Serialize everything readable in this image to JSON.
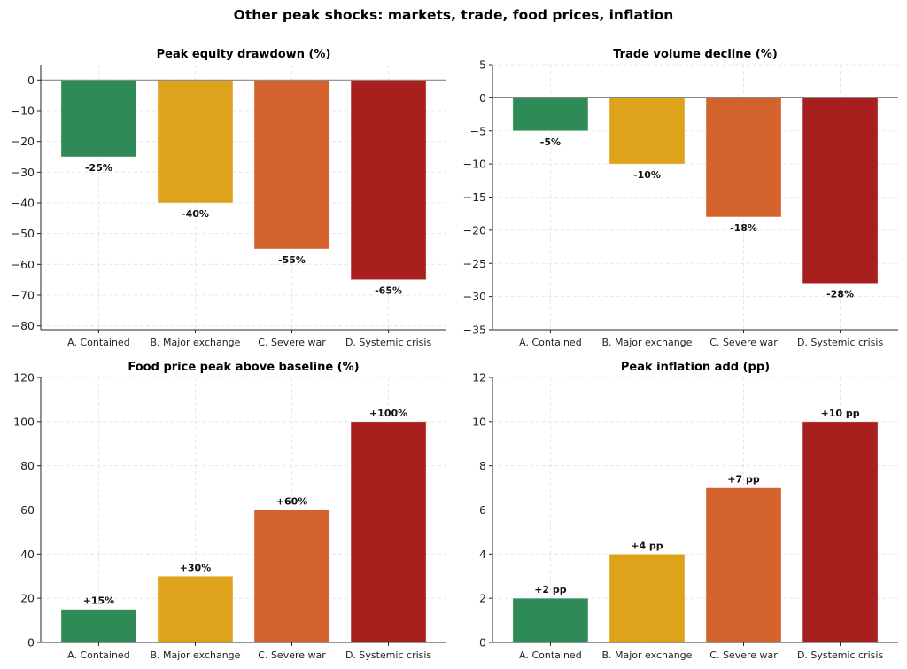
{
  "figure": {
    "title": "Other peak shocks: markets, trade, food prices, inflation"
  },
  "colors": {
    "scenario_a": "#2e8b57",
    "scenario_b": "#dfa31b",
    "scenario_c": "#d4622d",
    "scenario_d": "#a8201d"
  },
  "chart_data": [
    {
      "type": "bar",
      "title": "Peak equity drawdown (%)",
      "categories": [
        "A. Contained",
        "B. Major exchange",
        "C. Severe war",
        "D. Systemic crisis"
      ],
      "values": [
        -25,
        -40,
        -55,
        -65
      ],
      "data_labels": [
        "-25%",
        "-40%",
        "-55%",
        "-65%"
      ],
      "xlabel": "",
      "ylabel": "",
      "ylim": [
        -81.25,
        5
      ],
      "yticks": [
        0,
        -10,
        -20,
        -30,
        -40,
        -50,
        -60,
        -70,
        -80
      ],
      "ytick_labels": [
        "0",
        "−10",
        "−20",
        "−30",
        "−40",
        "−50",
        "−60",
        "−70",
        "−80"
      ],
      "grid": true,
      "zero_line": true
    },
    {
      "type": "bar",
      "title": "Trade volume decline (%)",
      "categories": [
        "A. Contained",
        "B. Major exchange",
        "C. Severe war",
        "D. Systemic crisis"
      ],
      "values": [
        -5,
        -10,
        -18,
        -28
      ],
      "data_labels": [
        "-5%",
        "-10%",
        "-18%",
        "-28%"
      ],
      "xlabel": "",
      "ylabel": "",
      "ylim": [
        -35,
        5
      ],
      "yticks": [
        5,
        0,
        -5,
        -10,
        -15,
        -20,
        -25,
        -30,
        -35
      ],
      "ytick_labels": [
        "5",
        "0",
        "−5",
        "−10",
        "−15",
        "−20",
        "−25",
        "−30",
        "−35"
      ],
      "grid": true,
      "zero_line": true
    },
    {
      "type": "bar",
      "title": "Food price peak above baseline (%)",
      "categories": [
        "A. Contained",
        "B. Major exchange",
        "C. Severe war",
        "D. Systemic crisis"
      ],
      "values": [
        15,
        30,
        60,
        100
      ],
      "data_labels": [
        "+15%",
        "+30%",
        "+60%",
        "+100%"
      ],
      "xlabel": "",
      "ylabel": "",
      "ylim": [
        0,
        120
      ],
      "yticks": [
        0,
        20,
        40,
        60,
        80,
        100,
        120
      ],
      "ytick_labels": [
        "0",
        "20",
        "40",
        "60",
        "80",
        "100",
        "120"
      ],
      "grid": true,
      "zero_line": false
    },
    {
      "type": "bar",
      "title": "Peak inflation add (pp)",
      "categories": [
        "A. Contained",
        "B. Major exchange",
        "C. Severe war",
        "D. Systemic crisis"
      ],
      "values": [
        2,
        4,
        7,
        10
      ],
      "data_labels": [
        "+2 pp",
        "+4 pp",
        "+7 pp",
        "+10 pp"
      ],
      "xlabel": "",
      "ylabel": "",
      "ylim": [
        0,
        12
      ],
      "yticks": [
        0,
        2,
        4,
        6,
        8,
        10,
        12
      ],
      "ytick_labels": [
        "0",
        "2",
        "4",
        "6",
        "8",
        "10",
        "12"
      ],
      "grid": true,
      "zero_line": false
    }
  ]
}
